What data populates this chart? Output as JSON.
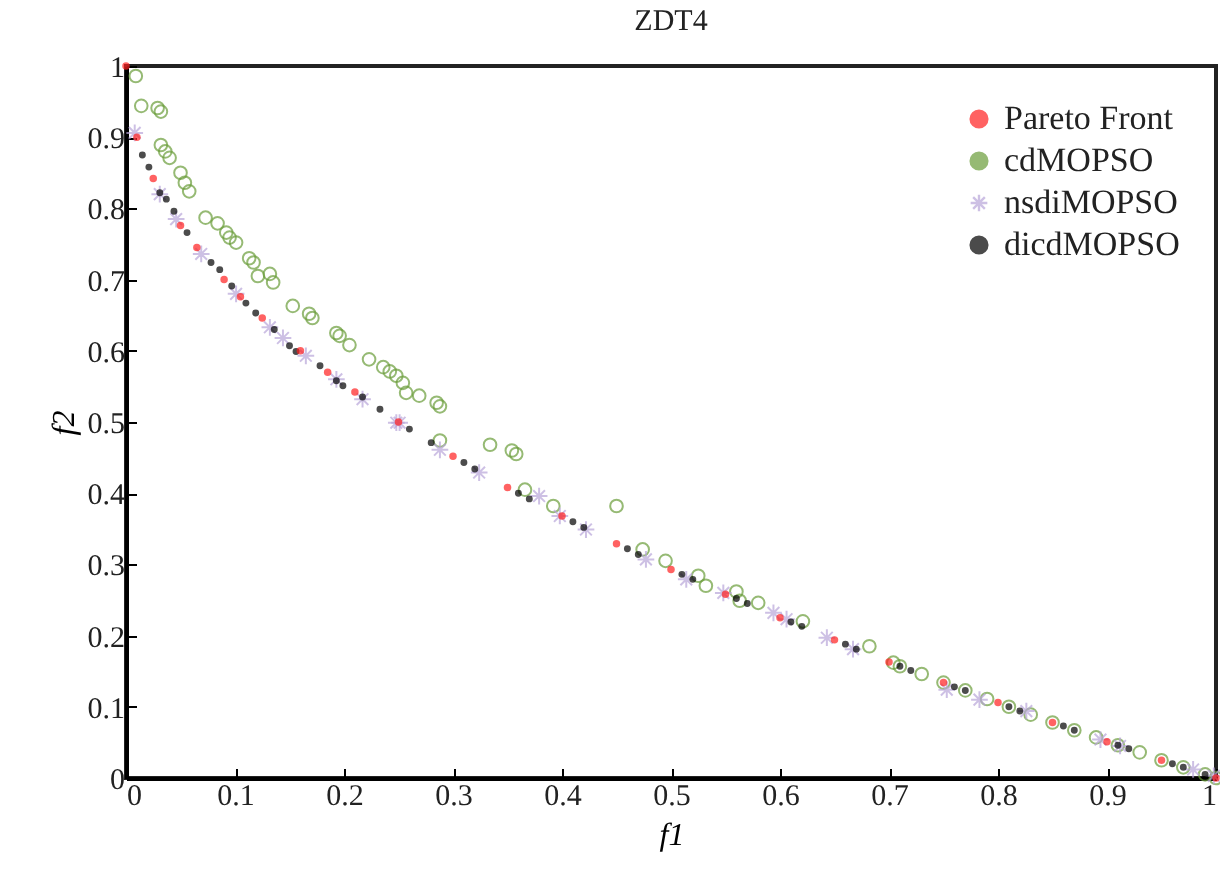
{
  "chart_data": {
    "type": "scatter",
    "title": "ZDT4",
    "xlabel": "f1",
    "ylabel": "f2",
    "xlim": [
      0,
      1
    ],
    "ylim": [
      0,
      1
    ],
    "xticks": [
      0,
      0.1,
      0.2,
      0.3,
      0.4,
      0.5,
      0.6,
      0.7,
      0.8,
      0.9,
      1
    ],
    "yticks": [
      0,
      0.1,
      0.2,
      0.3,
      0.4,
      0.5,
      0.6,
      0.7,
      0.8,
      0.9,
      1
    ],
    "grid": false,
    "legend": "top right",
    "series": [
      {
        "name": "Pareto Front",
        "color": "#ff2020",
        "marker": "circle",
        "x": [
          0,
          0.01,
          0.025,
          0.05,
          0.065,
          0.09,
          0.105,
          0.125,
          0.16,
          0.185,
          0.21,
          0.25,
          0.3,
          0.35,
          0.4,
          0.45,
          0.5,
          0.55,
          0.6,
          0.65,
          0.7,
          0.75,
          0.8,
          0.85,
          0.9,
          0.95,
          1
        ],
        "values": [
          1,
          0.9,
          0.842,
          0.776,
          0.745,
          0.7,
          0.676,
          0.646,
          0.6,
          0.57,
          0.542,
          0.5,
          0.452,
          0.408,
          0.368,
          0.329,
          0.293,
          0.258,
          0.225,
          0.194,
          0.163,
          0.134,
          0.106,
          0.078,
          0.051,
          0.025,
          0
        ]
      },
      {
        "name": "cdMOPSO",
        "color": "#6a9d3a",
        "marker": "circle",
        "x": [
          0.009,
          0.014,
          0.029,
          0.032,
          0.032,
          0.036,
          0.04,
          0.05,
          0.054,
          0.058,
          0.073,
          0.084,
          0.092,
          0.095,
          0.101,
          0.113,
          0.117,
          0.121,
          0.132,
          0.135,
          0.153,
          0.168,
          0.171,
          0.193,
          0.196,
          0.205,
          0.223,
          0.236,
          0.242,
          0.248,
          0.254,
          0.257,
          0.269,
          0.285,
          0.288,
          0.288,
          0.334,
          0.354,
          0.358,
          0.366,
          0.392,
          0.45,
          0.474,
          0.495,
          0.525,
          0.532,
          0.56,
          0.563,
          0.58,
          0.621,
          0.682,
          0.704,
          0.71,
          0.73,
          0.75,
          0.77,
          0.79,
          0.81,
          0.83,
          0.85,
          0.87,
          0.89,
          0.91,
          0.93,
          0.95,
          0.97,
          0.99,
          1
        ],
        "values": [
          0.986,
          0.944,
          0.941,
          0.936,
          0.889,
          0.88,
          0.871,
          0.85,
          0.836,
          0.824,
          0.787,
          0.779,
          0.766,
          0.759,
          0.752,
          0.73,
          0.724,
          0.705,
          0.708,
          0.696,
          0.663,
          0.652,
          0.646,
          0.625,
          0.621,
          0.608,
          0.588,
          0.577,
          0.571,
          0.565,
          0.555,
          0.541,
          0.537,
          0.527,
          0.522,
          0.474,
          0.468,
          0.46,
          0.455,
          0.405,
          0.382,
          0.382,
          0.321,
          0.305,
          0.284,
          0.27,
          0.262,
          0.249,
          0.246,
          0.22,
          0.185,
          0.162,
          0.157,
          0.146,
          0.134,
          0.123,
          0.111,
          0.1,
          0.089,
          0.078,
          0.067,
          0.057,
          0.046,
          0.036,
          0.025,
          0.015,
          0.005,
          0
        ]
      },
      {
        "name": "nsdiMOPSO",
        "color": "#b9a6da",
        "marker": "cross",
        "x": [
          0.008,
          0.031,
          0.046,
          0.069,
          0.101,
          0.132,
          0.144,
          0.165,
          0.193,
          0.217,
          0.248,
          0.251,
          0.288,
          0.324,
          0.379,
          0.398,
          0.422,
          0.477,
          0.514,
          0.548,
          0.594,
          0.606,
          0.643,
          0.667,
          0.753,
          0.783,
          0.826,
          0.894,
          0.912,
          0.979,
          0.998
        ],
        "values": [
          0.906,
          0.82,
          0.785,
          0.736,
          0.68,
          0.633,
          0.618,
          0.593,
          0.56,
          0.532,
          0.499,
          0.499,
          0.461,
          0.429,
          0.396,
          0.368,
          0.349,
          0.307,
          0.279,
          0.26,
          0.232,
          0.223,
          0.197,
          0.181,
          0.124,
          0.11,
          0.094,
          0.054,
          0.045,
          0.012,
          0.003
        ]
      },
      {
        "name": "dicdMOPSO",
        "color": "#000000",
        "marker": "circle",
        "x": [
          0.015,
          0.021,
          0.031,
          0.037,
          0.044,
          0.056,
          0.078,
          0.086,
          0.097,
          0.11,
          0.119,
          0.136,
          0.15,
          0.156,
          0.178,
          0.193,
          0.199,
          0.217,
          0.233,
          0.26,
          0.28,
          0.31,
          0.32,
          0.36,
          0.37,
          0.41,
          0.42,
          0.46,
          0.47,
          0.51,
          0.52,
          0.56,
          0.57,
          0.61,
          0.62,
          0.66,
          0.67,
          0.71,
          0.72,
          0.76,
          0.77,
          0.81,
          0.82,
          0.86,
          0.87,
          0.91,
          0.92,
          0.96,
          0.97,
          0.99
        ],
        "values": [
          0.875,
          0.858,
          0.822,
          0.813,
          0.796,
          0.766,
          0.724,
          0.714,
          0.691,
          0.667,
          0.653,
          0.63,
          0.607,
          0.599,
          0.579,
          0.558,
          0.551,
          0.535,
          0.518,
          0.49,
          0.471,
          0.443,
          0.434,
          0.4,
          0.392,
          0.36,
          0.352,
          0.322,
          0.314,
          0.286,
          0.279,
          0.252,
          0.245,
          0.219,
          0.213,
          0.188,
          0.181,
          0.157,
          0.151,
          0.128,
          0.123,
          0.1,
          0.094,
          0.073,
          0.067,
          0.046,
          0.041,
          0.02,
          0.015,
          0.005
        ]
      }
    ]
  }
}
